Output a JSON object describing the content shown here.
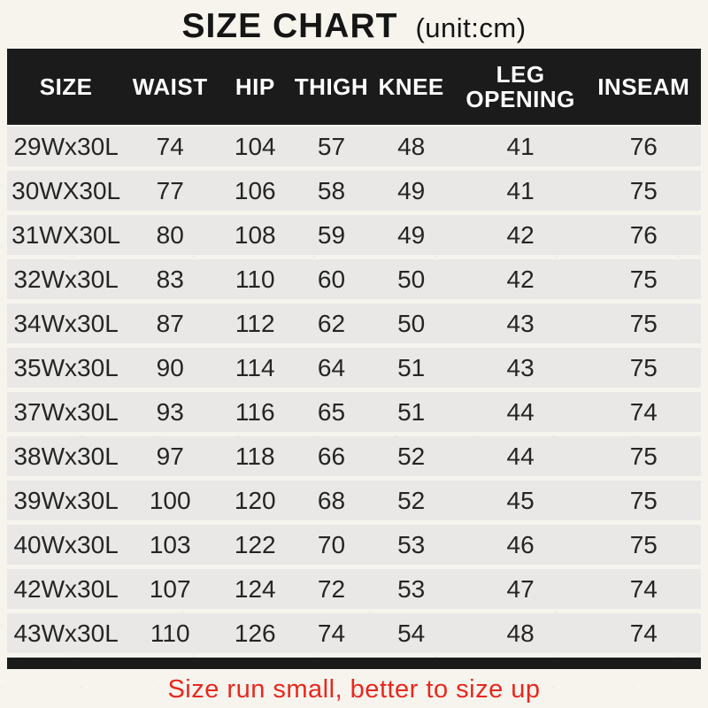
{
  "title": {
    "main": "SIZE CHART",
    "unit": "(unit:cm)"
  },
  "chart_data": {
    "type": "table",
    "title": "SIZE CHART (unit:cm)",
    "columns": [
      "SIZE",
      "WAIST",
      "HIP",
      "THIGH",
      "KNEE",
      "LEG OPENING",
      "INSEAM"
    ],
    "rows": [
      [
        "29Wx30L",
        74,
        104,
        57,
        48,
        41,
        76
      ],
      [
        "30WX30L",
        77,
        106,
        58,
        49,
        41,
        75
      ],
      [
        "31WX30L",
        80,
        108,
        59,
        49,
        42,
        76
      ],
      [
        "32Wx30L",
        83,
        110,
        60,
        50,
        42,
        75
      ],
      [
        "34Wx30L",
        87,
        112,
        62,
        50,
        43,
        75
      ],
      [
        "35Wx30L",
        90,
        114,
        64,
        51,
        43,
        75
      ],
      [
        "37Wx30L",
        93,
        116,
        65,
        51,
        44,
        74
      ],
      [
        "38Wx30L",
        97,
        118,
        66,
        52,
        44,
        75
      ],
      [
        "39Wx30L",
        100,
        120,
        68,
        52,
        45,
        75
      ],
      [
        "40Wx30L",
        103,
        122,
        70,
        53,
        46,
        75
      ],
      [
        "42Wx30L",
        107,
        124,
        72,
        53,
        47,
        74
      ],
      [
        "43Wx30L",
        110,
        126,
        74,
        54,
        48,
        74
      ]
    ]
  },
  "footer": {
    "note": "Size run small, better to size up"
  },
  "colors": {
    "page_bg": "#f7f4ee",
    "header_bg": "#1b1b1b",
    "header_text": "#ffffff",
    "row_bg": "#e9e8e7",
    "row_text": "#252525",
    "note_red": "#e8281e"
  }
}
